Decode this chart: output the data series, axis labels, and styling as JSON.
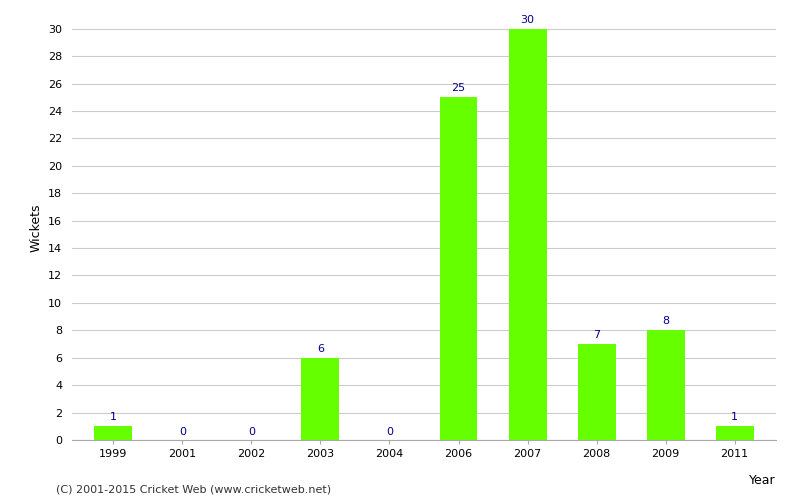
{
  "years": [
    1999,
    2001,
    2002,
    2003,
    2004,
    2006,
    2007,
    2008,
    2009,
    2011
  ],
  "wickets": [
    1,
    0,
    0,
    6,
    0,
    25,
    30,
    7,
    8,
    1
  ],
  "bar_color": "#66ff00",
  "bar_edge_color": "#66ff00",
  "label_color": "#00008B",
  "xlabel": "Year",
  "ylabel": "Wickets",
  "ylim": [
    0,
    31
  ],
  "yticks": [
    0,
    2,
    4,
    6,
    8,
    10,
    12,
    14,
    16,
    18,
    20,
    22,
    24,
    26,
    28,
    30
  ],
  "footnote": "(C) 2001-2015 Cricket Web (www.cricketweb.net)",
  "label_fontsize": 8,
  "axis_label_fontsize": 9,
  "tick_fontsize": 8,
  "bar_width": 0.55,
  "grid_color": "#cccccc"
}
